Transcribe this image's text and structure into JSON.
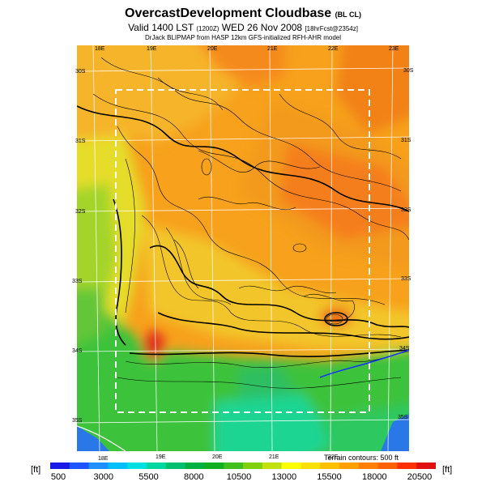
{
  "header": {
    "title_main": "OvercastDevelopment Cloudbase",
    "title_tag": "(BL CL)",
    "valid_line": "Valid 1400 LST",
    "valid_code": "(1200Z)",
    "valid_date": "WED 26 Nov 2008",
    "valid_fcst": "[18hrFcst@2354z]",
    "credit": "DrJack BLIPMAP from HASP 12km GFS-initialized RFH-AHR model"
  },
  "map": {
    "lon_ticks_top": [
      "18E",
      "19E",
      "20E",
      "21E",
      "22E",
      "23E"
    ],
    "lon_ticks_bottom": [
      "18E",
      "19E",
      "20E",
      "21E",
      "22E"
    ],
    "lat_ticks_left": [
      "30S",
      "31S",
      "32S",
      "33S",
      "34S",
      "35S"
    ],
    "lat_ticks_right": [
      "30S",
      "31S",
      "32S",
      "33S",
      "34S",
      "35S"
    ],
    "terrain_note": "Terrain contours: 500 ft"
  },
  "colorbar": {
    "unit_left": "[ft]",
    "unit_right": "[ft]",
    "labels": [
      "500",
      "3000",
      "5500",
      "8000",
      "10500",
      "13000",
      "15500",
      "18000",
      "20500"
    ],
    "colors": [
      "#1a1ae6",
      "#1f55ff",
      "#1e90ff",
      "#00bfff",
      "#00e0e0",
      "#00d8a0",
      "#00c070",
      "#00b040",
      "#10b020",
      "#40c020",
      "#80d010",
      "#c0e010",
      "#ffff00",
      "#ffe000",
      "#ffc000",
      "#ffa000",
      "#ff8000",
      "#ff6000",
      "#ff3000",
      "#e01010"
    ]
  }
}
